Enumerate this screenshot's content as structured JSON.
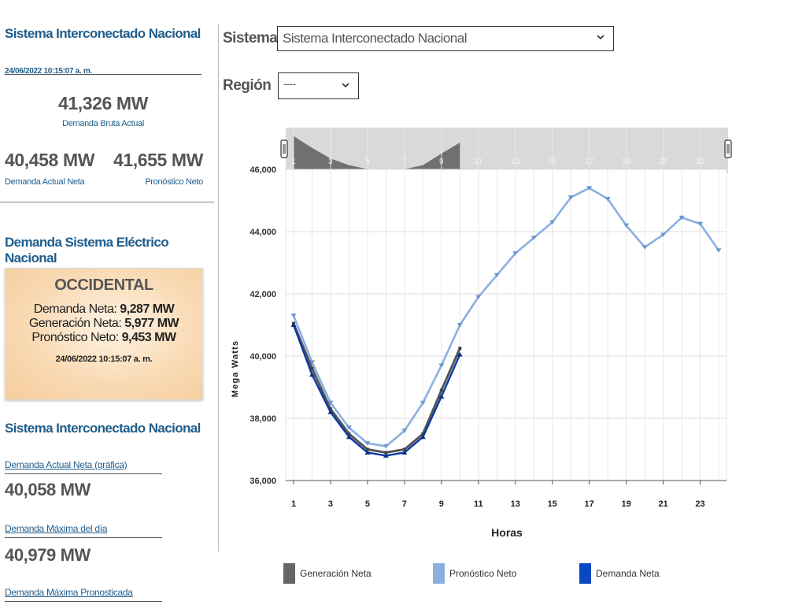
{
  "left": {
    "title": "Sistema Interconectado Nacional",
    "timestamp": "24/06/2022 10:15:07 a. m.",
    "gross_demand_value": "41,326 MW",
    "gross_demand_label": "Demanda Bruta Actual",
    "net_demand_value": "40,458 MW",
    "net_demand_label": "Demanda Actual Neta",
    "forecast_value": "41,655 MW",
    "forecast_label": "Pronóstico Neto",
    "section_title": "Demanda Sistema Eléctrico Nacional",
    "card": {
      "region": "OCCIDENTAL",
      "net_demand_label": "Demanda Neta:",
      "net_demand_value": "9,287 MW",
      "net_gen_label": "Generación Neta:",
      "net_gen_value": "5,977 MW",
      "forecast_label": "Pronóstico Neto:",
      "forecast_value": "9,453 MW",
      "timestamp": "24/06/2022 10:15:07 a. m."
    },
    "sin_title": "Sistema Interconectado Nacional",
    "chart_demand_link": "Demanda Actual Neta (gráfica)",
    "chart_demand_value": "40,058 MW",
    "max_demand_link": "Demanda Máxima del día",
    "max_demand_value": "40,979 MW",
    "max_forecast_link": "Demanda Máxima Pronosticada"
  },
  "controls": {
    "system_label": "Sistema",
    "system_value": "Sistema Interconectado Nacional",
    "region_label": "Región",
    "region_value": "----",
    "chevron": "chevron-down-icon"
  },
  "chart_data": {
    "type": "line",
    "xlabel": "Horas",
    "ylabel": "Mega Watts",
    "ylim": [
      36000,
      46000
    ],
    "xlim": [
      1,
      24
    ],
    "yticks": [
      "36,000",
      "38,000",
      "40,000",
      "42,000",
      "44,000",
      "46,000"
    ],
    "xticks": [
      "1",
      "3",
      "5",
      "7",
      "9",
      "11",
      "13",
      "15",
      "17",
      "19",
      "21",
      "23"
    ],
    "grid": true,
    "legend_position": "bottom",
    "series": [
      {
        "name": "Pronóstico Neto",
        "color": "#8ab0e0",
        "x": [
          1,
          2,
          3,
          4,
          5,
          6,
          7,
          8,
          9,
          10,
          11,
          12,
          13,
          14,
          15,
          16,
          17,
          18,
          19,
          20,
          21,
          22,
          23,
          24
        ],
        "values": [
          41300,
          39800,
          38500,
          37700,
          37200,
          37100,
          37600,
          38500,
          39700,
          41000,
          41900,
          42600,
          43300,
          43800,
          44300,
          45100,
          45400,
          45050,
          44200,
          43500,
          43900,
          44450,
          44250,
          43400
        ]
      },
      {
        "name": "Generación Neta",
        "color": "#555555",
        "x": [
          1,
          2,
          3,
          4,
          5,
          6,
          7,
          8,
          9,
          10
        ],
        "values": [
          41050,
          39600,
          38300,
          37500,
          37000,
          36900,
          37000,
          37500,
          38900,
          40250
        ]
      },
      {
        "name": "Demanda Neta",
        "color": "#0a3aa6",
        "x": [
          1,
          2,
          3,
          4,
          5,
          6,
          7,
          8,
          9,
          10
        ],
        "values": [
          41000,
          39400,
          38200,
          37400,
          36900,
          36800,
          36900,
          37400,
          38700,
          40050
        ]
      }
    ],
    "navigator": {
      "xticks": [
        "1",
        "3",
        "5",
        "7",
        "9",
        "11",
        "13",
        "15",
        "17",
        "19",
        "21",
        "23"
      ]
    }
  }
}
